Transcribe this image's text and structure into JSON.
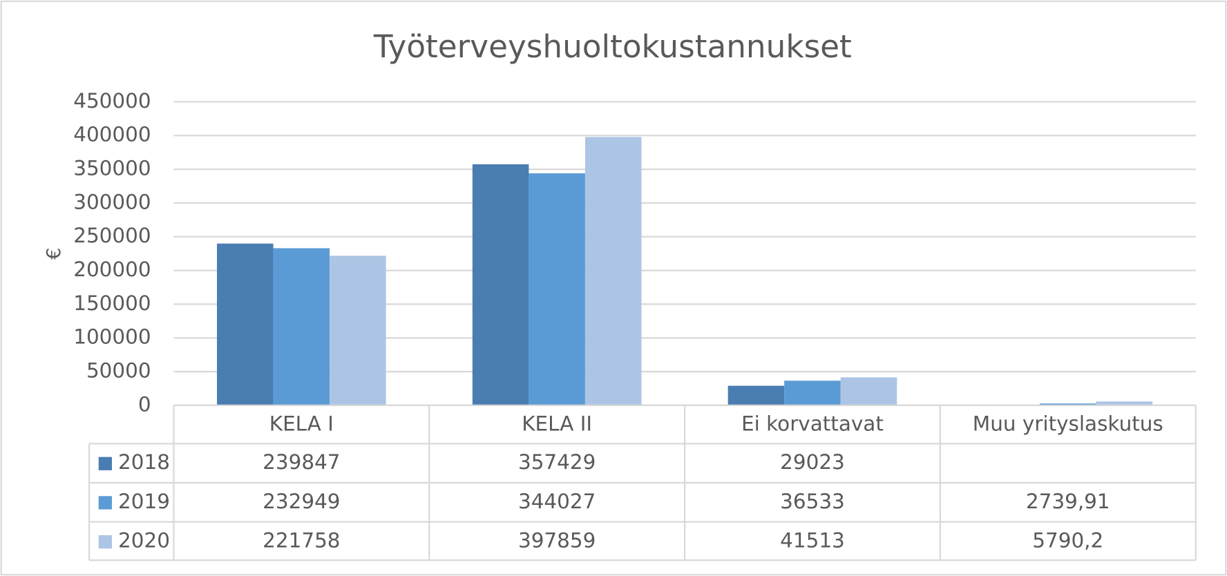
{
  "chart_data": {
    "type": "bar",
    "title": "Työterveyshuoltokustannukset",
    "y_label": "€",
    "categories": [
      "KELA I",
      "KELA II",
      "Ei korvattavat",
      "Muu yrityslaskutus"
    ],
    "series": [
      {
        "name": "2018",
        "color": "#4a7db1",
        "values": [
          239847,
          357429,
          29023,
          null
        ]
      },
      {
        "name": "2019",
        "color": "#5b9bd5",
        "values": [
          232949,
          344027,
          36533,
          2739.91
        ],
        "value_labels": [
          "232949",
          "344027",
          "36533",
          "2739,91"
        ]
      },
      {
        "name": "2020",
        "color": "#adc5e4",
        "values": [
          221758,
          397859,
          41513,
          5790.2
        ],
        "value_labels": [
          "221758",
          "397859",
          "41513",
          "5790,2"
        ]
      }
    ],
    "ylim": [
      0,
      450000
    ],
    "yticks": [
      0,
      50000,
      100000,
      150000,
      200000,
      250000,
      300000,
      350000,
      400000,
      450000
    ],
    "grid": true
  }
}
